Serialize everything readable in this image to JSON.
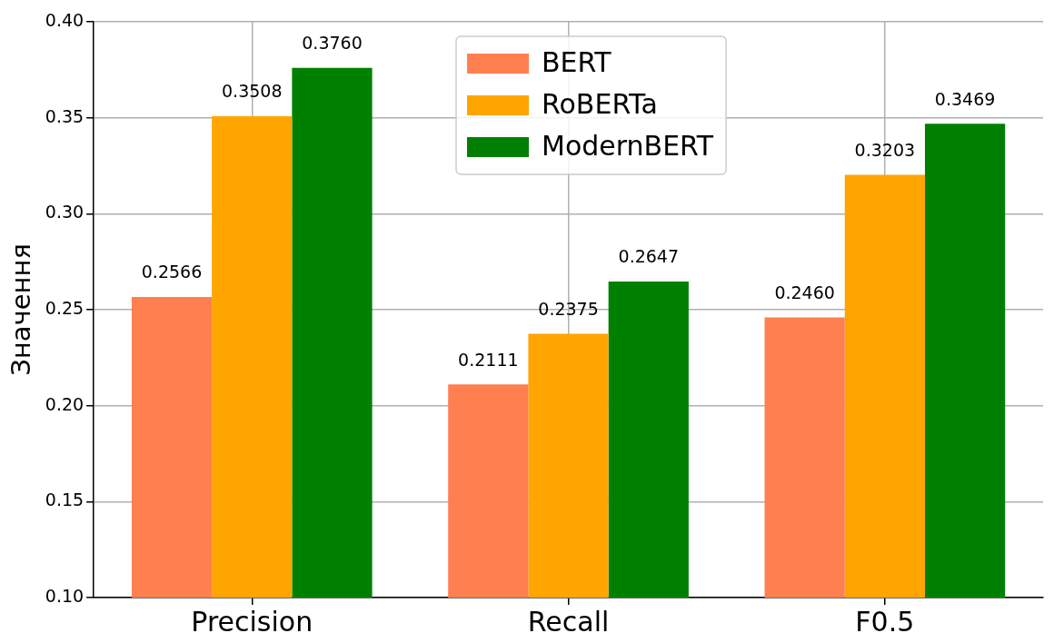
{
  "chart_data": {
    "type": "bar",
    "ylabel": "Значення",
    "categories": [
      "Precision",
      "Recall",
      "F0.5"
    ],
    "series": [
      {
        "name": "BERT",
        "color": "#ff7f50",
        "values": [
          0.2566,
          0.2111,
          0.246
        ],
        "value_labels": [
          "0.2566",
          "0.2111",
          "0.2460"
        ]
      },
      {
        "name": "RoBERTa",
        "color": "#ffa500",
        "values": [
          0.3508,
          0.2375,
          0.3203
        ],
        "value_labels": [
          "0.3508",
          "0.2375",
          "0.3203"
        ]
      },
      {
        "name": "ModernBERT",
        "color": "#008000",
        "values": [
          0.376,
          0.2647,
          0.3469
        ],
        "value_labels": [
          "0.3760",
          "0.2647",
          "0.3469"
        ]
      }
    ],
    "ylim": [
      0.1,
      0.4
    ],
    "yticks": [
      {
        "value": 0.1,
        "label": "0.10"
      },
      0.15,
      {
        "value": 0.2,
        "label": "0.20"
      },
      0.25,
      {
        "value": 0.3,
        "label": "0.30"
      },
      0.35,
      {
        "value": 0.4,
        "label": "0.40"
      }
    ],
    "grid": true,
    "legend": "top"
  }
}
